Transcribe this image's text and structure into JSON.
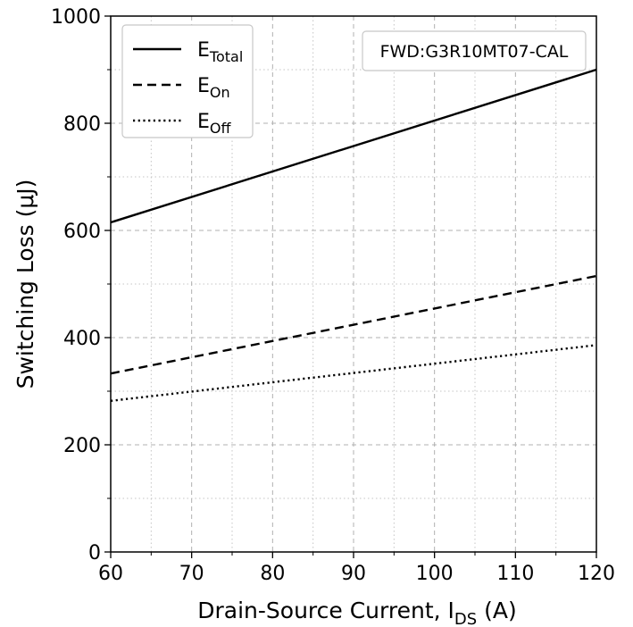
{
  "chart_data": {
    "type": "line",
    "xlabel": {
      "main": "Drain-Source Current, I",
      "sub": "DS",
      "tail": " (A)"
    },
    "ylabel": "Switching Loss (μJ)",
    "xlim": [
      60,
      120
    ],
    "ylim": [
      0,
      1000
    ],
    "x_ticks": [
      60,
      70,
      80,
      90,
      100,
      110,
      120
    ],
    "y_ticks": [
      0,
      200,
      400,
      600,
      800,
      1000
    ],
    "x_minor_step": 5,
    "y_minor_step": 100,
    "grid": true,
    "legend_position": "upper-left",
    "annotation": "FWD:G3R10MT07-CAL",
    "series": [
      {
        "name": "E",
        "sub": "Total",
        "style": "solid",
        "color": "#000000",
        "x": [
          60,
          120
        ],
        "y": [
          615,
          900
        ]
      },
      {
        "name": "E",
        "sub": "On",
        "style": "dashed",
        "color": "#000000",
        "x": [
          60,
          120
        ],
        "y": [
          333,
          515
        ]
      },
      {
        "name": "E",
        "sub": "Off",
        "style": "dotted",
        "color": "#000000",
        "x": [
          60,
          120
        ],
        "y": [
          282,
          386
        ]
      }
    ]
  }
}
